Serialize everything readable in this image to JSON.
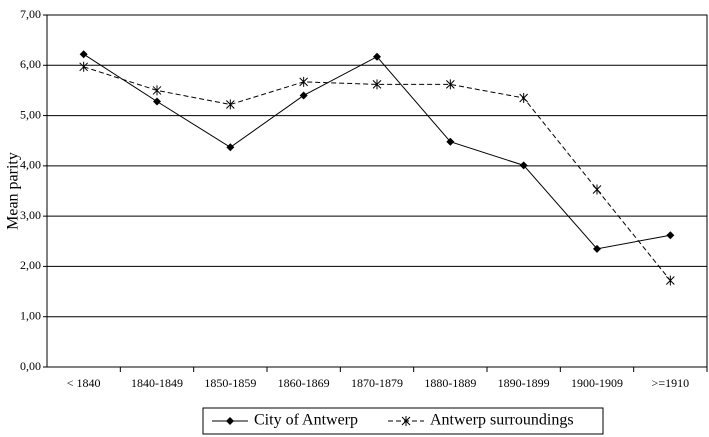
{
  "chart_data": {
    "type": "line",
    "y_label": "Mean parity",
    "categories": [
      "< 1840",
      "1840-1849",
      "1850-1859",
      "1860-1869",
      "1870-1879",
      "1880-1889",
      "1890-1899",
      "1900-1909",
      ">=1910"
    ],
    "series": [
      {
        "name": "City of Antwerp",
        "color": "#000000",
        "marker": "diamond",
        "dash": false,
        "values": [
          6.22,
          5.28,
          4.37,
          5.4,
          6.17,
          4.48,
          4.01,
          2.35,
          2.62
        ]
      },
      {
        "name": "Antwerp surroundings",
        "color": "#000000",
        "marker": "star",
        "dash": true,
        "values": [
          5.97,
          5.5,
          5.22,
          5.67,
          5.62,
          5.62,
          5.35,
          3.53,
          1.72
        ]
      }
    ],
    "ylim": [
      0,
      7
    ],
    "yticks": [
      {
        "value": 0,
        "label": "0,00"
      },
      {
        "value": 1,
        "label": "1,00"
      },
      {
        "value": 2,
        "label": "2,00"
      },
      {
        "value": 3,
        "label": "3,00"
      },
      {
        "value": 4,
        "label": "4,00"
      },
      {
        "value": 5,
        "label": "5,00"
      },
      {
        "value": 6,
        "label": "6,00"
      },
      {
        "value": 7,
        "label": "7,00"
      }
    ],
    "grid": true,
    "legend": "bottom"
  }
}
